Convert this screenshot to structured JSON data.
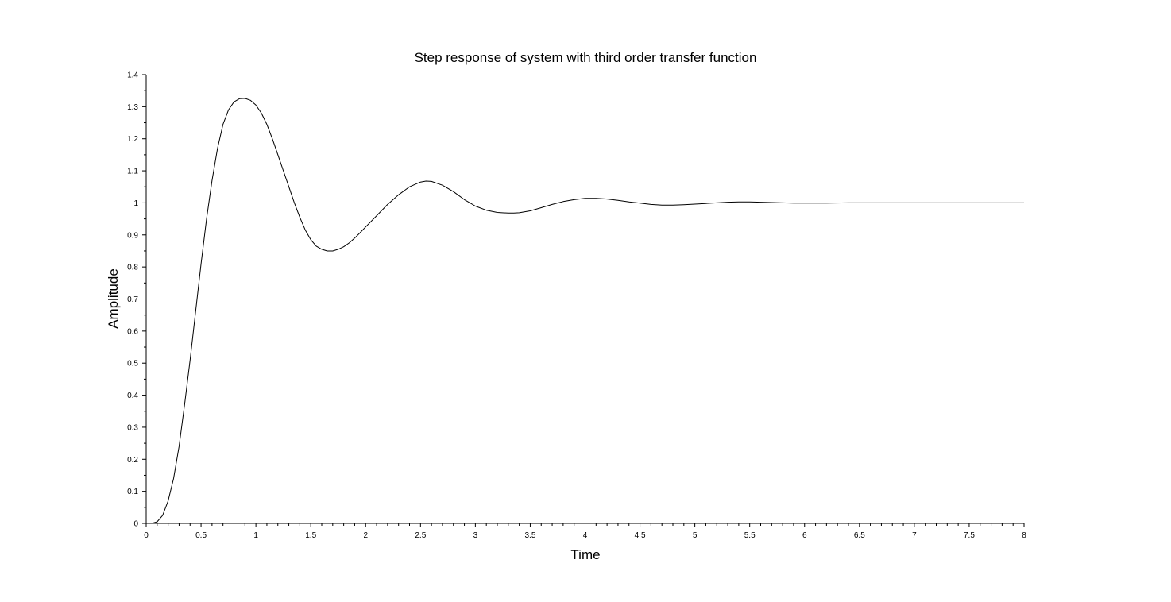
{
  "chart_data": {
    "type": "line",
    "title": "Step response of system with third order transfer function",
    "xlabel": "Time",
    "ylabel": "Amplitude",
    "xlim": [
      0,
      8
    ],
    "ylim": [
      0,
      1.4
    ],
    "x_ticks": [
      "0",
      "0.5",
      "1",
      "1.5",
      "2",
      "2.5",
      "3",
      "3.5",
      "4",
      "4.5",
      "5",
      "5.5",
      "6",
      "6.5",
      "7",
      "7.5",
      "8"
    ],
    "y_ticks": [
      "0",
      "0.1",
      "0.2",
      "0.3",
      "0.4",
      "0.5",
      "0.6",
      "0.7",
      "0.8",
      "0.9",
      "1",
      "1.1",
      "1.2",
      "1.3",
      "1.4"
    ],
    "grid": false,
    "line_color": "#000000",
    "series": [
      {
        "x": [
          0,
          0.05,
          0.1,
          0.15,
          0.2,
          0.25,
          0.3,
          0.35,
          0.4,
          0.45,
          0.5,
          0.55,
          0.6,
          0.65,
          0.7,
          0.75,
          0.8,
          0.85,
          0.9,
          0.95,
          1.0,
          1.05,
          1.1,
          1.15,
          1.2,
          1.25,
          1.3,
          1.35,
          1.4,
          1.45,
          1.5,
          1.55,
          1.6,
          1.65,
          1.7,
          1.75,
          1.8,
          1.85,
          1.9,
          1.95,
          2.0,
          2.1,
          2.2,
          2.3,
          2.4,
          2.5,
          2.55,
          2.6,
          2.7,
          2.8,
          2.9,
          3.0,
          3.1,
          3.2,
          3.3,
          3.35,
          3.4,
          3.5,
          3.6,
          3.7,
          3.8,
          3.9,
          4.0,
          4.1,
          4.2,
          4.3,
          4.4,
          4.5,
          4.6,
          4.7,
          4.8,
          4.9,
          5.0,
          5.1,
          5.2,
          5.3,
          5.4,
          5.5,
          5.6,
          5.7,
          5.8,
          5.9,
          6.0,
          6.2,
          6.4,
          6.6,
          6.8,
          7.0,
          7.2,
          7.4,
          7.6,
          7.8,
          8.0
        ],
        "values": [
          0,
          0.0,
          0.005,
          0.025,
          0.07,
          0.14,
          0.24,
          0.37,
          0.51,
          0.66,
          0.81,
          0.95,
          1.07,
          1.17,
          1.245,
          1.29,
          1.315,
          1.325,
          1.326,
          1.32,
          1.305,
          1.28,
          1.245,
          1.2,
          1.15,
          1.1,
          1.05,
          1.0,
          0.955,
          0.915,
          0.885,
          0.865,
          0.855,
          0.85,
          0.85,
          0.855,
          0.863,
          0.875,
          0.89,
          0.907,
          0.925,
          0.96,
          0.995,
          1.025,
          1.05,
          1.065,
          1.068,
          1.067,
          1.055,
          1.035,
          1.01,
          0.99,
          0.977,
          0.97,
          0.968,
          0.968,
          0.969,
          0.975,
          0.985,
          0.995,
          1.004,
          1.01,
          1.014,
          1.014,
          1.012,
          1.008,
          1.003,
          0.999,
          0.995,
          0.993,
          0.993,
          0.994,
          0.996,
          0.998,
          1.0,
          1.002,
          1.003,
          1.003,
          1.002,
          1.001,
          1.0,
          0.999,
          0.999,
          0.999,
          1.0,
          1.0,
          1.0,
          1.0,
          1.0,
          1.0,
          1.0,
          1.0,
          1.0
        ]
      }
    ]
  }
}
